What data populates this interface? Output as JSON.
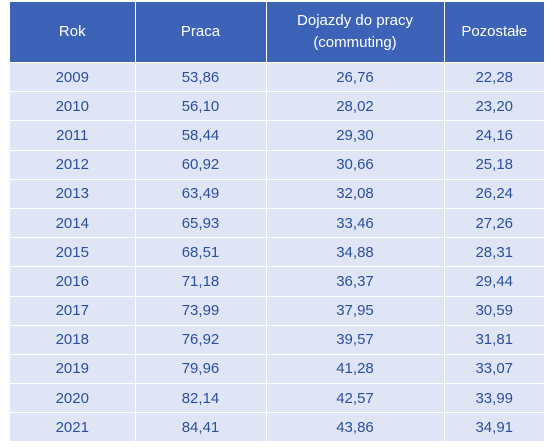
{
  "table": {
    "headers": {
      "year": "Rok",
      "work": "Praca",
      "commuting_line1": "Dojazdy do pracy",
      "commuting_line2": "(commuting)",
      "other": "Pozostałe"
    },
    "rows": [
      [
        "2009",
        "53,86",
        "26,76",
        "22,28"
      ],
      [
        "2010",
        "56,10",
        "28,02",
        "23,20"
      ],
      [
        "2011",
        "58,44",
        "29,30",
        "24,16"
      ],
      [
        "2012",
        "60,92",
        "30,66",
        "25,18"
      ],
      [
        "2013",
        "63,49",
        "32,08",
        "26,24"
      ],
      [
        "2014",
        "65,93",
        "33,46",
        "27,26"
      ],
      [
        "2015",
        "68,51",
        "34,88",
        "28,31"
      ],
      [
        "2016",
        "71,18",
        "36,37",
        "29,44"
      ],
      [
        "2017",
        "73,99",
        "37,95",
        "30,59"
      ],
      [
        "2018",
        "76,92",
        "39,57",
        "31,81"
      ],
      [
        "2019",
        "79,96",
        "41,28",
        "33,07"
      ],
      [
        "2020",
        "82,14",
        "42,57",
        "33,99"
      ],
      [
        "2021",
        "84,41",
        "43,86",
        "34,91"
      ]
    ]
  },
  "colors": {
    "header_bg": "#3c63b8",
    "header_text": "#ffffff",
    "row_bg": "#dfe5f4",
    "row_text": "#2c4f9d"
  }
}
